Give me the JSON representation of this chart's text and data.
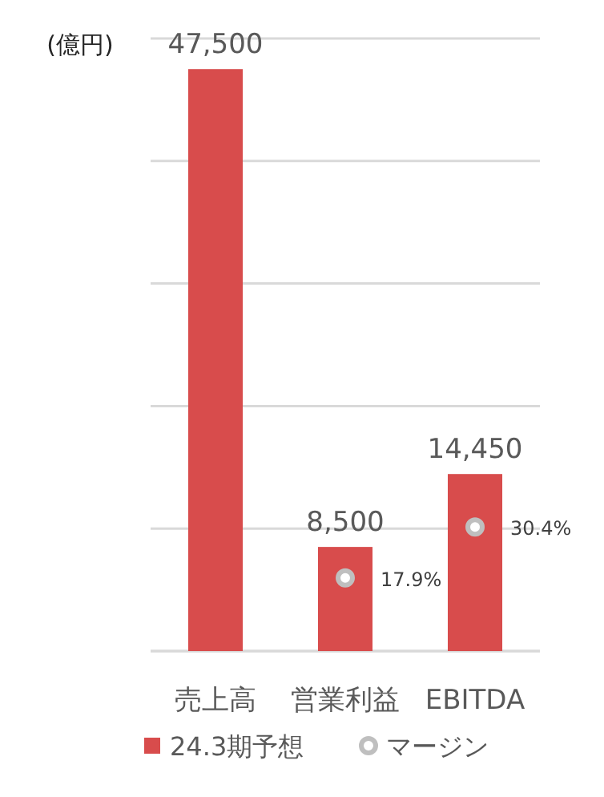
{
  "chart_data": {
    "type": "bar",
    "ylabel": "(億円)",
    "categories": [
      "売上高",
      "営業利益",
      "EBITDA"
    ],
    "series": [
      {
        "name": "24.3期予想",
        "color": "#d84c4c",
        "values": [
          47500,
          8500,
          14450
        ],
        "value_labels": [
          "47,500",
          "8,500",
          "14,450"
        ]
      },
      {
        "name": "マージン",
        "type": "scatter",
        "axis": "y2",
        "color": "#bfbfbf",
        "values": [
          null,
          17.9,
          30.4
        ],
        "value_labels": [
          null,
          "17.9%",
          "30.4%"
        ]
      }
    ],
    "ylim": [
      0,
      50000
    ],
    "yticks": [
      {
        "value": 0,
        "label": null
      },
      {
        "value": 10000,
        "label": null
      },
      {
        "value": 20000,
        "label": null
      },
      {
        "value": 30000,
        "label": null
      },
      {
        "value": 40000,
        "label": null
      },
      {
        "value": 50000,
        "label": null
      }
    ],
    "y2lim": [
      0,
      150
    ],
    "grid": "y",
    "legend": "bottom",
    "tick_labels": "x",
    "marker": "circle"
  }
}
